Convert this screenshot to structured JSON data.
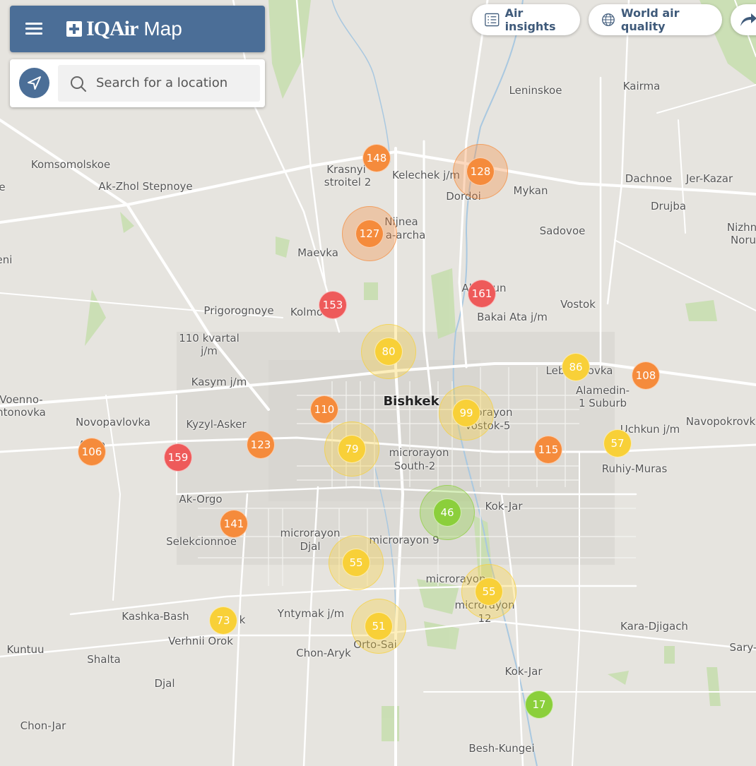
{
  "header": {
    "brand": "IQAir",
    "brand_suffix": "Map",
    "menu_icon": "menu-icon"
  },
  "search": {
    "placeholder": "Search for a location",
    "locate_icon": "navigation-arrow-icon",
    "search_icon": "search-icon"
  },
  "top_buttons": [
    {
      "label": "Air insights",
      "icon": "list-document-icon"
    },
    {
      "label": "World air quality",
      "icon": "globe-icon"
    },
    {
      "label": "",
      "icon": "share-arrow-icon"
    }
  ],
  "colors": {
    "header_bg": "#4b6e97",
    "good": "#8bcf3b",
    "moderate": "#f8d038",
    "unhealthy_sensitive": "#f58b3c",
    "unhealthy": "#ee5a5a"
  },
  "places": [
    {
      "label": "Leninskoe"
    },
    {
      "label": "Kairma"
    },
    {
      "label": "Komsomolskoe"
    },
    {
      "label": "Ak-Zhol Stepnoye"
    },
    {
      "label": "Krasnyi"
    },
    {
      "label": "stroitel 2"
    },
    {
      "label": "Kelechek j/m"
    },
    {
      "label": "Dordoi"
    },
    {
      "label": "Mykan"
    },
    {
      "label": "Dachnoe"
    },
    {
      "label": "Jer-Kazar"
    },
    {
      "label": "Drujba"
    },
    {
      "label": "Nizhn"
    },
    {
      "label": "Noru"
    },
    {
      "label": "Nijnea"
    },
    {
      "label": "a-archa"
    },
    {
      "label": "Sadovoe"
    },
    {
      "label": "Maevka"
    },
    {
      "label": "eni"
    },
    {
      "label": "Ala-Tuun"
    },
    {
      "label": "Vostok"
    },
    {
      "label": "Bakai Ata j/m"
    },
    {
      "label": "Prigorognoye"
    },
    {
      "label": "Kolmo"
    },
    {
      "label": "110 kvartal"
    },
    {
      "label": "j/m"
    },
    {
      "label": "Kasym j/m"
    },
    {
      "label": "Lebedinovka"
    },
    {
      "label": "Alamedin-"
    },
    {
      "label": "1 Suburb"
    },
    {
      "label": "Voenno-"
    },
    {
      "label": "ntonovka"
    },
    {
      "label": "Bishkek"
    },
    {
      "label": "microrayon"
    },
    {
      "label": "Vostok-5"
    },
    {
      "label": "Novopavlovka"
    },
    {
      "label": "Kyzyl-Asker"
    },
    {
      "label": "Uchkun j/m"
    },
    {
      "label": "Navopokrovk"
    },
    {
      "label": "Al...o"
    },
    {
      "label": "microrayon"
    },
    {
      "label": "South-2"
    },
    {
      "label": "Ruhiy-Muras"
    },
    {
      "label": "Ak-Orgo"
    },
    {
      "label": "Kok-Jar"
    },
    {
      "label": "microrayon"
    },
    {
      "label": "Djal"
    },
    {
      "label": "microrayon 9"
    },
    {
      "label": "Selekcionnoe"
    },
    {
      "label": "microrayon"
    },
    {
      "label": "microrayon"
    },
    {
      "label": "12"
    },
    {
      "label": "Kashka-Bash"
    },
    {
      "label": "k"
    },
    {
      "label": "Yntymak j/m"
    },
    {
      "label": "Kara-Djigach"
    },
    {
      "label": "Verhnii Orok"
    },
    {
      "label": "Orto-Sai"
    },
    {
      "label": "Kuntuu"
    },
    {
      "label": "Sary-"
    },
    {
      "label": "Shalta"
    },
    {
      "label": "Chon-Aryk"
    },
    {
      "label": "Kok-Jar"
    },
    {
      "label": "Djal"
    },
    {
      "label": "Chon-Jar"
    },
    {
      "label": "Besh-Kungei"
    },
    {
      "label": "e"
    }
  ],
  "markers": [
    {
      "aqi": "148",
      "level": "unhealthy_sensitive",
      "cluster": false
    },
    {
      "aqi": "128",
      "level": "unhealthy_sensitive",
      "cluster": true
    },
    {
      "aqi": "127",
      "level": "unhealthy_sensitive",
      "cluster": true
    },
    {
      "aqi": "153",
      "level": "unhealthy",
      "cluster": false
    },
    {
      "aqi": "161",
      "level": "unhealthy",
      "cluster": false
    },
    {
      "aqi": "80",
      "level": "moderate",
      "cluster": true
    },
    {
      "aqi": "86",
      "level": "moderate",
      "cluster": false
    },
    {
      "aqi": "108",
      "level": "unhealthy_sensitive",
      "cluster": false
    },
    {
      "aqi": "110",
      "level": "unhealthy_sensitive",
      "cluster": false
    },
    {
      "aqi": "99",
      "level": "moderate",
      "cluster": true
    },
    {
      "aqi": "106",
      "level": "unhealthy_sensitive",
      "cluster": false
    },
    {
      "aqi": "159",
      "level": "unhealthy",
      "cluster": false
    },
    {
      "aqi": "123",
      "level": "unhealthy_sensitive",
      "cluster": false
    },
    {
      "aqi": "79",
      "level": "moderate",
      "cluster": true
    },
    {
      "aqi": "115",
      "level": "unhealthy_sensitive",
      "cluster": false
    },
    {
      "aqi": "57",
      "level": "moderate",
      "cluster": false
    },
    {
      "aqi": "46",
      "level": "good",
      "cluster": true
    },
    {
      "aqi": "141",
      "level": "unhealthy_sensitive",
      "cluster": false
    },
    {
      "aqi": "55",
      "level": "moderate",
      "cluster": true
    },
    {
      "aqi": "55",
      "level": "moderate",
      "cluster": true
    },
    {
      "aqi": "73",
      "level": "moderate",
      "cluster": false
    },
    {
      "aqi": "51",
      "level": "moderate",
      "cluster": true
    },
    {
      "aqi": "17",
      "level": "good",
      "cluster": false
    }
  ]
}
